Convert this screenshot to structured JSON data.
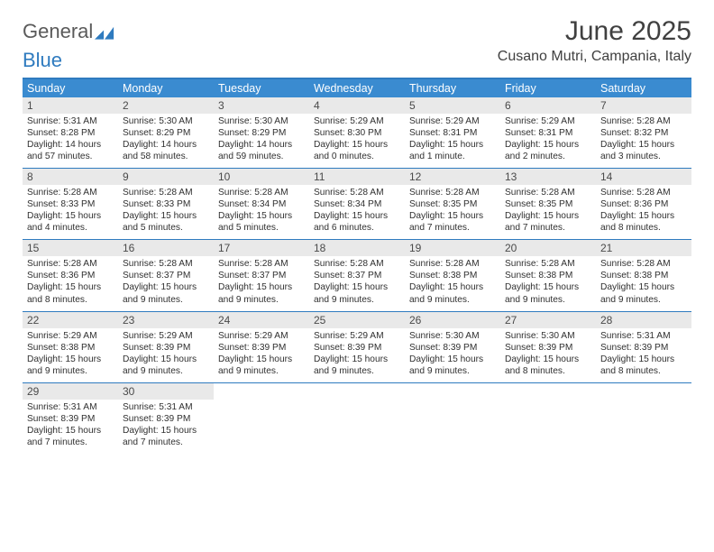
{
  "brand": {
    "word1": "General",
    "word2": "Blue"
  },
  "title": "June 2025",
  "location": "Cusano Mutri, Campania, Italy",
  "colors": {
    "header_bar": "#3a8bd0",
    "rule": "#2f7bbf",
    "daynum_bg": "#e9e9e9",
    "text": "#303030",
    "title_text": "#404040"
  },
  "daysOfWeek": [
    "Sunday",
    "Monday",
    "Tuesday",
    "Wednesday",
    "Thursday",
    "Friday",
    "Saturday"
  ],
  "weeks": [
    [
      {
        "n": "1",
        "sunrise": "5:31 AM",
        "sunset": "8:28 PM",
        "daylight": "14 hours and 57 minutes."
      },
      {
        "n": "2",
        "sunrise": "5:30 AM",
        "sunset": "8:29 PM",
        "daylight": "14 hours and 58 minutes."
      },
      {
        "n": "3",
        "sunrise": "5:30 AM",
        "sunset": "8:29 PM",
        "daylight": "14 hours and 59 minutes."
      },
      {
        "n": "4",
        "sunrise": "5:29 AM",
        "sunset": "8:30 PM",
        "daylight": "15 hours and 0 minutes."
      },
      {
        "n": "5",
        "sunrise": "5:29 AM",
        "sunset": "8:31 PM",
        "daylight": "15 hours and 1 minute."
      },
      {
        "n": "6",
        "sunrise": "5:29 AM",
        "sunset": "8:31 PM",
        "daylight": "15 hours and 2 minutes."
      },
      {
        "n": "7",
        "sunrise": "5:28 AM",
        "sunset": "8:32 PM",
        "daylight": "15 hours and 3 minutes."
      }
    ],
    [
      {
        "n": "8",
        "sunrise": "5:28 AM",
        "sunset": "8:33 PM",
        "daylight": "15 hours and 4 minutes."
      },
      {
        "n": "9",
        "sunrise": "5:28 AM",
        "sunset": "8:33 PM",
        "daylight": "15 hours and 5 minutes."
      },
      {
        "n": "10",
        "sunrise": "5:28 AM",
        "sunset": "8:34 PM",
        "daylight": "15 hours and 5 minutes."
      },
      {
        "n": "11",
        "sunrise": "5:28 AM",
        "sunset": "8:34 PM",
        "daylight": "15 hours and 6 minutes."
      },
      {
        "n": "12",
        "sunrise": "5:28 AM",
        "sunset": "8:35 PM",
        "daylight": "15 hours and 7 minutes."
      },
      {
        "n": "13",
        "sunrise": "5:28 AM",
        "sunset": "8:35 PM",
        "daylight": "15 hours and 7 minutes."
      },
      {
        "n": "14",
        "sunrise": "5:28 AM",
        "sunset": "8:36 PM",
        "daylight": "15 hours and 8 minutes."
      }
    ],
    [
      {
        "n": "15",
        "sunrise": "5:28 AM",
        "sunset": "8:36 PM",
        "daylight": "15 hours and 8 minutes."
      },
      {
        "n": "16",
        "sunrise": "5:28 AM",
        "sunset": "8:37 PM",
        "daylight": "15 hours and 9 minutes."
      },
      {
        "n": "17",
        "sunrise": "5:28 AM",
        "sunset": "8:37 PM",
        "daylight": "15 hours and 9 minutes."
      },
      {
        "n": "18",
        "sunrise": "5:28 AM",
        "sunset": "8:37 PM",
        "daylight": "15 hours and 9 minutes."
      },
      {
        "n": "19",
        "sunrise": "5:28 AM",
        "sunset": "8:38 PM",
        "daylight": "15 hours and 9 minutes."
      },
      {
        "n": "20",
        "sunrise": "5:28 AM",
        "sunset": "8:38 PM",
        "daylight": "15 hours and 9 minutes."
      },
      {
        "n": "21",
        "sunrise": "5:28 AM",
        "sunset": "8:38 PM",
        "daylight": "15 hours and 9 minutes."
      }
    ],
    [
      {
        "n": "22",
        "sunrise": "5:29 AM",
        "sunset": "8:38 PM",
        "daylight": "15 hours and 9 minutes."
      },
      {
        "n": "23",
        "sunrise": "5:29 AM",
        "sunset": "8:39 PM",
        "daylight": "15 hours and 9 minutes."
      },
      {
        "n": "24",
        "sunrise": "5:29 AM",
        "sunset": "8:39 PM",
        "daylight": "15 hours and 9 minutes."
      },
      {
        "n": "25",
        "sunrise": "5:29 AM",
        "sunset": "8:39 PM",
        "daylight": "15 hours and 9 minutes."
      },
      {
        "n": "26",
        "sunrise": "5:30 AM",
        "sunset": "8:39 PM",
        "daylight": "15 hours and 9 minutes."
      },
      {
        "n": "27",
        "sunrise": "5:30 AM",
        "sunset": "8:39 PM",
        "daylight": "15 hours and 8 minutes."
      },
      {
        "n": "28",
        "sunrise": "5:31 AM",
        "sunset": "8:39 PM",
        "daylight": "15 hours and 8 minutes."
      }
    ],
    [
      {
        "n": "29",
        "sunrise": "5:31 AM",
        "sunset": "8:39 PM",
        "daylight": "15 hours and 7 minutes."
      },
      {
        "n": "30",
        "sunrise": "5:31 AM",
        "sunset": "8:39 PM",
        "daylight": "15 hours and 7 minutes."
      },
      null,
      null,
      null,
      null,
      null
    ]
  ],
  "labels": {
    "sunrise": "Sunrise: ",
    "sunset": "Sunset: ",
    "daylight": "Daylight: "
  }
}
